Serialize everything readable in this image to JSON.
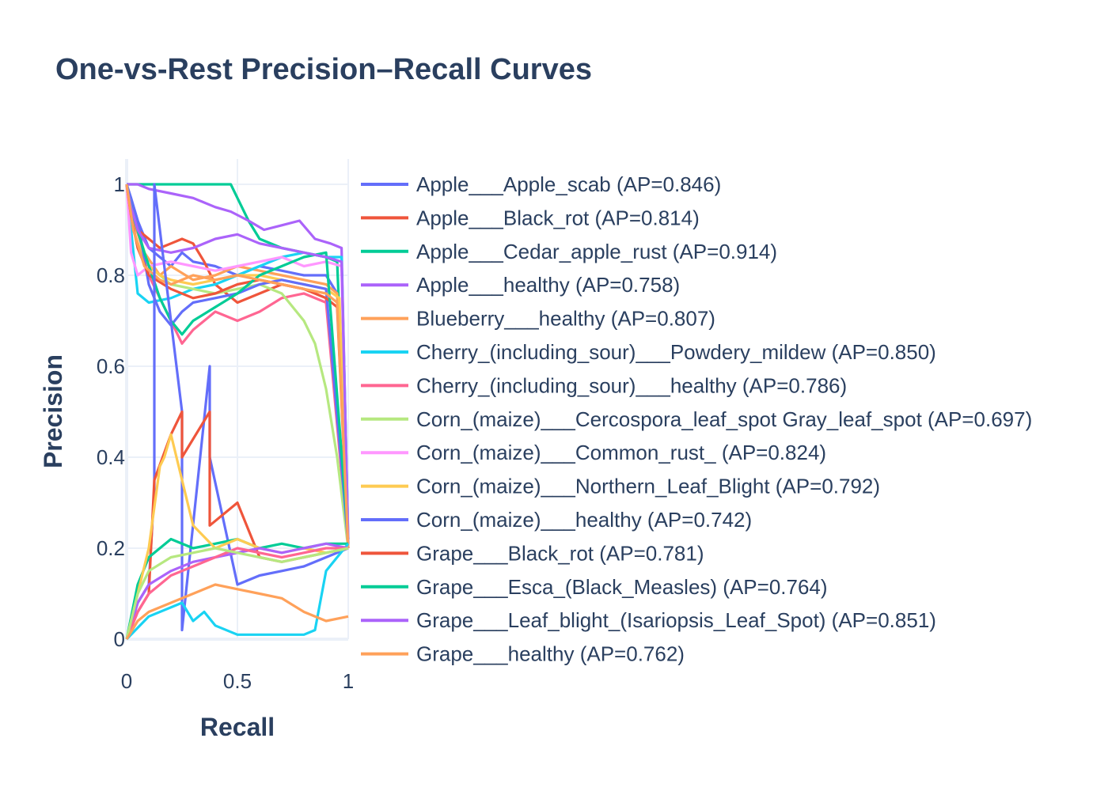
{
  "chart_data": {
    "type": "line",
    "title": "One-vs-Rest Precision–Recall Curves",
    "xlabel": "Recall",
    "ylabel": "Precision",
    "xlim": [
      0,
      1
    ],
    "ylim": [
      0,
      1
    ],
    "x_ticks": [
      {
        "value": 0,
        "label": "0"
      },
      {
        "value": 0.5,
        "label": "0.5"
      },
      {
        "value": 1,
        "label": "1"
      }
    ],
    "y_ticks": [
      {
        "value": 0,
        "label": "0"
      },
      {
        "value": 0.2,
        "label": "0.2"
      },
      {
        "value": 0.4,
        "label": "0.4"
      },
      {
        "value": 0.6,
        "label": "0.6"
      },
      {
        "value": 0.8,
        "label": "0.8"
      },
      {
        "value": 1,
        "label": "1"
      }
    ],
    "grid": true,
    "legend_position": "right",
    "series": [
      {
        "name": "Apple___Apple_scab (AP=0.846)",
        "color": "#636efa",
        "x": [
          0,
          0.02,
          0.05,
          0.1,
          0.15,
          0.2,
          0.25,
          0.3,
          0.4,
          0.5,
          0.6,
          0.7,
          0.8,
          0.9,
          0.95,
          1.0
        ],
        "y": [
          1.0,
          0.97,
          0.92,
          0.86,
          0.84,
          0.82,
          0.85,
          0.83,
          0.82,
          0.8,
          0.82,
          0.81,
          0.8,
          0.8,
          0.76,
          0.2
        ]
      },
      {
        "name": "Apple___Black_rot (AP=0.814)",
        "color": "#EF553B",
        "x": [
          0,
          0.02,
          0.05,
          0.1,
          0.15,
          0.2,
          0.25,
          0.3,
          0.35,
          0.4,
          0.5,
          0.6,
          0.7,
          0.8,
          0.9,
          1.0
        ],
        "y": [
          1.0,
          0.96,
          0.9,
          0.88,
          0.86,
          0.87,
          0.88,
          0.87,
          0.83,
          0.78,
          0.74,
          0.76,
          0.78,
          0.77,
          0.75,
          0.21
        ]
      },
      {
        "name": "Apple___Cedar_apple_rust (AP=0.914)",
        "color": "#00cc96",
        "x": [
          0,
          0.1,
          0.2,
          0.3,
          0.4,
          0.47,
          0.5,
          0.55,
          0.6,
          0.7,
          0.8,
          0.9,
          0.95,
          1.0
        ],
        "y": [
          1.0,
          1.0,
          1.0,
          1.0,
          1.0,
          1.0,
          0.97,
          0.92,
          0.88,
          0.86,
          0.85,
          0.84,
          0.83,
          0.22
        ]
      },
      {
        "name": "Apple___healthy (AP=0.758)",
        "color": "#ab63fa",
        "x": [
          0,
          0.05,
          0.1,
          0.2,
          0.3,
          0.4,
          0.47,
          0.55,
          0.62,
          0.7,
          0.78,
          0.85,
          0.92,
          0.97,
          1.0
        ],
        "y": [
          1.0,
          1.0,
          0.99,
          0.98,
          0.97,
          0.95,
          0.94,
          0.92,
          0.9,
          0.91,
          0.92,
          0.88,
          0.87,
          0.86,
          0.21
        ]
      },
      {
        "name": "Blueberry___healthy (AP=0.807)",
        "color": "#FFA15A",
        "x": [
          0,
          0.03,
          0.08,
          0.15,
          0.2,
          0.3,
          0.4,
          0.5,
          0.6,
          0.7,
          0.8,
          0.9,
          0.95,
          1.0
        ],
        "y": [
          1.0,
          0.92,
          0.85,
          0.8,
          0.82,
          0.79,
          0.8,
          0.82,
          0.81,
          0.8,
          0.79,
          0.78,
          0.76,
          0.2
        ]
      },
      {
        "name": "Cherry_(including_sour)___Powdery_mildew (AP=0.850)",
        "color": "#19d3f3",
        "x": [
          0,
          0.02,
          0.05,
          0.1,
          0.2,
          0.3,
          0.4,
          0.5,
          0.6,
          0.7,
          0.8,
          0.9,
          0.97,
          1.0
        ],
        "y": [
          1.0,
          0.9,
          0.76,
          0.74,
          0.75,
          0.77,
          0.78,
          0.8,
          0.82,
          0.84,
          0.85,
          0.84,
          0.84,
          0.22
        ]
      },
      {
        "name": "Cherry_(including_sour)___healthy (AP=0.786)",
        "color": "#FF6692",
        "x": [
          0,
          0.02,
          0.05,
          0.1,
          0.15,
          0.2,
          0.25,
          0.3,
          0.35,
          0.4,
          0.5,
          0.6,
          0.7,
          0.8,
          0.9,
          1.0
        ],
        "y": [
          1.0,
          0.95,
          0.9,
          0.8,
          0.75,
          0.7,
          0.65,
          0.68,
          0.7,
          0.72,
          0.7,
          0.72,
          0.75,
          0.76,
          0.74,
          0.2
        ]
      },
      {
        "name": "Corn_(maize)___Cercospora_leaf_spot Gray_leaf_spot (AP=0.697)",
        "color": "#B6E880",
        "x": [
          0,
          0.05,
          0.1,
          0.2,
          0.3,
          0.4,
          0.5,
          0.6,
          0.7,
          0.8,
          0.85,
          0.9,
          0.95,
          1.0
        ],
        "y": [
          1.0,
          0.9,
          0.82,
          0.78,
          0.77,
          0.76,
          0.77,
          0.78,
          0.76,
          0.7,
          0.65,
          0.55,
          0.4,
          0.2
        ]
      },
      {
        "name": "Corn_(maize)___Common_rust_ (AP=0.824)",
        "color": "#FF97FF",
        "x": [
          0,
          0.02,
          0.05,
          0.1,
          0.2,
          0.3,
          0.4,
          0.5,
          0.6,
          0.7,
          0.8,
          0.9,
          0.97,
          1.0
        ],
        "y": [
          1.0,
          0.85,
          0.8,
          0.82,
          0.83,
          0.82,
          0.81,
          0.82,
          0.83,
          0.84,
          0.82,
          0.83,
          0.82,
          0.21
        ]
      },
      {
        "name": "Corn_(maize)___Northern_Leaf_Blight (AP=0.792)",
        "color": "#FECB52",
        "x": [
          0,
          0.03,
          0.08,
          0.15,
          0.2,
          0.3,
          0.4,
          0.5,
          0.6,
          0.7,
          0.8,
          0.9,
          0.96,
          1.0
        ],
        "y": [
          1.0,
          0.9,
          0.83,
          0.8,
          0.79,
          0.78,
          0.79,
          0.8,
          0.8,
          0.79,
          0.78,
          0.77,
          0.75,
          0.2
        ]
      },
      {
        "name": "Corn_(maize)___healthy (AP=0.742)",
        "color": "#636efa",
        "x": [
          0,
          0.05,
          0.1,
          0.15,
          0.2,
          0.25,
          0.3,
          0.4,
          0.5,
          0.6,
          0.7,
          0.8,
          0.9,
          1.0
        ],
        "y": [
          1.0,
          0.92,
          0.78,
          0.72,
          0.69,
          0.72,
          0.74,
          0.75,
          0.76,
          0.78,
          0.79,
          0.78,
          0.77,
          0.21
        ]
      },
      {
        "name": "Grape___Black_rot (AP=0.781)",
        "color": "#EF553B",
        "x": [
          0,
          0.02,
          0.05,
          0.1,
          0.2,
          0.3,
          0.4,
          0.5,
          0.6,
          0.7,
          0.8,
          0.9,
          0.95,
          1.0
        ],
        "y": [
          1.0,
          0.93,
          0.86,
          0.8,
          0.77,
          0.75,
          0.76,
          0.78,
          0.79,
          0.78,
          0.77,
          0.75,
          0.73,
          0.2
        ]
      },
      {
        "name": "Grape___Esca_(Black_Measles) (AP=0.764)",
        "color": "#00cc96",
        "x": [
          0,
          0.03,
          0.08,
          0.15,
          0.2,
          0.25,
          0.3,
          0.4,
          0.5,
          0.6,
          0.7,
          0.8,
          0.9,
          1.0
        ],
        "y": [
          1.0,
          0.93,
          0.85,
          0.75,
          0.7,
          0.67,
          0.7,
          0.73,
          0.76,
          0.8,
          0.82,
          0.84,
          0.85,
          0.22
        ]
      },
      {
        "name": "Grape___Leaf_blight_(Isariopsis_Leaf_Spot) (AP=0.851)",
        "color": "#ab63fa",
        "x": [
          0,
          0.02,
          0.05,
          0.1,
          0.2,
          0.3,
          0.4,
          0.5,
          0.6,
          0.7,
          0.8,
          0.9,
          0.97,
          1.0
        ],
        "y": [
          1.0,
          0.95,
          0.9,
          0.86,
          0.85,
          0.86,
          0.88,
          0.89,
          0.87,
          0.86,
          0.85,
          0.84,
          0.83,
          0.21
        ]
      },
      {
        "name": "Grape___healthy (AP=0.762)",
        "color": "#FFA15A",
        "x": [
          0,
          0.03,
          0.08,
          0.15,
          0.2,
          0.3,
          0.4,
          0.5,
          0.6,
          0.7,
          0.8,
          0.9,
          0.95,
          1.0
        ],
        "y": [
          1.0,
          0.9,
          0.82,
          0.79,
          0.78,
          0.8,
          0.79,
          0.8,
          0.79,
          0.78,
          0.77,
          0.76,
          0.74,
          0.2
        ]
      },
      {
        "name": "",
        "color": "#636efa",
        "x": [
          0,
          0.05,
          0.1,
          0.125,
          0.125,
          0.25,
          0.25,
          0.375,
          0.375,
          0.5,
          0.6,
          0.7,
          0.8,
          0.9,
          1.0
        ],
        "y": [
          0.0,
          0.08,
          0.12,
          0.33,
          1.0,
          0.5,
          0.02,
          0.6,
          0.4,
          0.12,
          0.14,
          0.15,
          0.16,
          0.18,
          0.2
        ]
      },
      {
        "name": "",
        "color": "#EF553B",
        "x": [
          0,
          0.05,
          0.1,
          0.125,
          0.2,
          0.25,
          0.25,
          0.375,
          0.375,
          0.5,
          0.6,
          0.7,
          0.8,
          0.9,
          1.0
        ],
        "y": [
          0.0,
          0.06,
          0.1,
          0.35,
          0.45,
          0.5,
          0.4,
          0.5,
          0.25,
          0.3,
          0.18,
          0.17,
          0.18,
          0.19,
          0.2
        ]
      },
      {
        "name": "",
        "color": "#00cc96",
        "x": [
          0,
          0.05,
          0.1,
          0.2,
          0.3,
          0.4,
          0.5,
          0.6,
          0.7,
          0.8,
          0.9,
          1.0
        ],
        "y": [
          0.0,
          0.12,
          0.18,
          0.22,
          0.2,
          0.21,
          0.22,
          0.2,
          0.21,
          0.2,
          0.21,
          0.21
        ]
      },
      {
        "name": "",
        "color": "#19d3f3",
        "x": [
          0,
          0.1,
          0.25,
          0.3,
          0.35,
          0.4,
          0.5,
          0.6,
          0.7,
          0.8,
          0.85,
          0.9,
          1.0
        ],
        "y": [
          0.0,
          0.05,
          0.08,
          0.04,
          0.06,
          0.03,
          0.01,
          0.01,
          0.01,
          0.01,
          0.02,
          0.15,
          0.21
        ]
      },
      {
        "name": "",
        "color": "#FECB52",
        "x": [
          0,
          0.05,
          0.1,
          0.15,
          0.17,
          0.2,
          0.3,
          0.4,
          0.5,
          0.6,
          0.7,
          0.8,
          0.9,
          1.0
        ],
        "y": [
          0.0,
          0.1,
          0.2,
          0.38,
          0.4,
          0.45,
          0.25,
          0.2,
          0.22,
          0.2,
          0.19,
          0.2,
          0.19,
          0.2
        ]
      },
      {
        "name": "",
        "color": "#ab63fa",
        "x": [
          0,
          0.05,
          0.1,
          0.2,
          0.3,
          0.4,
          0.5,
          0.6,
          0.7,
          0.8,
          0.9,
          1.0
        ],
        "y": [
          0.0,
          0.08,
          0.12,
          0.15,
          0.17,
          0.18,
          0.19,
          0.2,
          0.19,
          0.2,
          0.21,
          0.2
        ]
      },
      {
        "name": "",
        "color": "#FF6692",
        "x": [
          0,
          0.05,
          0.1,
          0.2,
          0.3,
          0.4,
          0.5,
          0.6,
          0.7,
          0.8,
          0.9,
          1.0
        ],
        "y": [
          0.0,
          0.06,
          0.1,
          0.14,
          0.16,
          0.18,
          0.2,
          0.19,
          0.18,
          0.19,
          0.2,
          0.2
        ]
      },
      {
        "name": "",
        "color": "#B6E880",
        "x": [
          0,
          0.05,
          0.1,
          0.2,
          0.3,
          0.4,
          0.5,
          0.6,
          0.7,
          0.8,
          0.9,
          1.0
        ],
        "y": [
          0.0,
          0.1,
          0.15,
          0.18,
          0.19,
          0.2,
          0.19,
          0.18,
          0.17,
          0.18,
          0.19,
          0.2
        ]
      },
      {
        "name": "",
        "color": "#FFA15A",
        "x": [
          0,
          0.05,
          0.1,
          0.2,
          0.3,
          0.4,
          0.5,
          0.6,
          0.7,
          0.8,
          0.9,
          1.0
        ],
        "y": [
          0.0,
          0.04,
          0.06,
          0.08,
          0.1,
          0.12,
          0.11,
          0.1,
          0.09,
          0.06,
          0.04,
          0.05
        ]
      }
    ]
  }
}
